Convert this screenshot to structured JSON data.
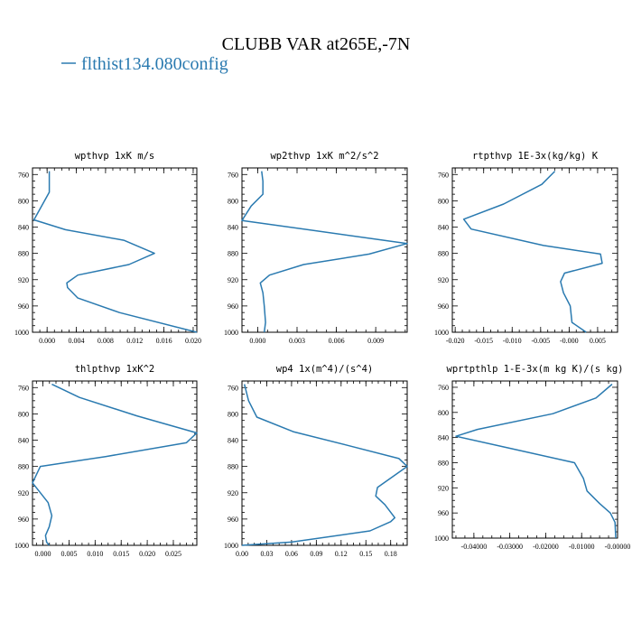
{
  "figure": {
    "title": "CLUBB VAR at265E,-7N",
    "legend_label": "flthist134.080config",
    "colors": {
      "series": "#2a7ab0",
      "frame": "#000000"
    }
  },
  "chart_data": [
    {
      "type": "line",
      "title": "wpthvp   1xK m/s",
      "xlim": [
        -0.002,
        0.0205
      ],
      "ylim": [
        1000,
        750
      ],
      "xticks": [
        0.0,
        0.004,
        0.008,
        0.012,
        0.016,
        0.02
      ],
      "xtick_labels": [
        "0.000",
        "0.004",
        "0.008",
        "0.012",
        "0.016",
        "0.020"
      ],
      "yticks": [
        760,
        800,
        840,
        880,
        920,
        960,
        1000
      ],
      "series": [
        {
          "x": [
            0.0003,
            0.0003,
            0.0003,
            -0.0018,
            0.0025,
            0.0105,
            0.0147,
            0.0112,
            0.0042,
            0.0027,
            0.0028,
            0.0042,
            0.0099,
            0.0205
          ],
          "y": [
            755,
            770,
            787,
            829,
            844,
            860,
            880,
            897,
            913,
            925,
            932,
            948,
            970,
            1000
          ]
        }
      ]
    },
    {
      "type": "line",
      "title": "wp2thvp   1xK m^2/s^2",
      "xlim": [
        -0.0012,
        0.0114
      ],
      "ylim": [
        1000,
        750
      ],
      "xticks": [
        0.0,
        0.003,
        0.006,
        0.009
      ],
      "xtick_labels": [
        "0.000",
        "0.003",
        "0.006",
        "0.009"
      ],
      "yticks": [
        760,
        800,
        840,
        880,
        920,
        960,
        1000
      ],
      "series": [
        {
          "x": [
            0.0003,
            0.0004,
            0.0004,
            -0.0005,
            -0.0012,
            0.0114,
            0.0085,
            0.0035,
            0.0009,
            0.0002,
            0.0004,
            0.0005,
            0.0006,
            0.0005
          ],
          "y": [
            755,
            770,
            790,
            808,
            830,
            865,
            881,
            897,
            913,
            925,
            940,
            960,
            985,
            1000
          ]
        }
      ]
    },
    {
      "type": "line",
      "title": "rtpthvp   1E-3x(kg/kg) K",
      "xlim": [
        -0.0205,
        0.0085
      ],
      "ylim": [
        1000,
        750
      ],
      "xticks": [
        -0.02,
        -0.015,
        -0.01,
        -0.005,
        0.0,
        0.005
      ],
      "xtick_labels": [
        "-0.020",
        "-0.015",
        "-0.010",
        "-0.005",
        "-0.000",
        "0.005"
      ],
      "yticks": [
        760,
        800,
        840,
        880,
        920,
        960,
        1000
      ],
      "series": [
        {
          "x": [
            -0.0025,
            -0.0048,
            -0.0115,
            -0.0185,
            -0.0172,
            -0.0045,
            0.0055,
            0.0058,
            -0.0008,
            -0.0015,
            -0.001,
            0.0002,
            0.0005,
            0.003
          ],
          "y": [
            755,
            775,
            805,
            828,
            843,
            868,
            881,
            895,
            910,
            923,
            940,
            960,
            985,
            1000
          ]
        }
      ]
    },
    {
      "type": "line",
      "title": "thlpthvp   1xK^2",
      "xlim": [
        -0.002,
        0.0295
      ],
      "ylim": [
        1000,
        750
      ],
      "xticks": [
        0.0,
        0.005,
        0.01,
        0.015,
        0.02,
        0.025
      ],
      "xtick_labels": [
        "0.000",
        "0.005",
        "0.010",
        "0.015",
        "0.020",
        "0.025"
      ],
      "yticks": [
        760,
        800,
        840,
        880,
        920,
        960,
        1000
      ],
      "series": [
        {
          "x": [
            0.0017,
            0.007,
            0.018,
            0.0295,
            0.0275,
            0.012,
            -0.0005,
            -0.002,
            0.001,
            0.0017,
            0.0012,
            0.0005,
            0.0007,
            0.0012
          ],
          "y": [
            755,
            775,
            803,
            829,
            844,
            865,
            880,
            905,
            935,
            955,
            972,
            985,
            995,
            1000
          ]
        }
      ]
    },
    {
      "type": "line",
      "title": "wp4   1x(m^4)/(s^4)",
      "xlim": [
        0.0,
        0.2
      ],
      "ylim": [
        1000,
        750
      ],
      "xticks": [
        0.0,
        0.03,
        0.06,
        0.09,
        0.12,
        0.15,
        0.18
      ],
      "xtick_labels": [
        "0.00",
        "0.03",
        "0.06",
        "0.09",
        "0.12",
        "0.15",
        "0.18"
      ],
      "yticks": [
        760,
        800,
        840,
        880,
        920,
        960,
        1000
      ],
      "series": [
        {
          "x": [
            0.003,
            0.008,
            0.018,
            0.062,
            0.128,
            0.19,
            0.2,
            0.164,
            0.162,
            0.173,
            0.185,
            0.18,
            0.155,
            0.06,
            0.0
          ],
          "y": [
            755,
            780,
            805,
            827,
            848,
            868,
            880,
            912,
            925,
            938,
            958,
            964,
            978,
            995,
            1000
          ]
        }
      ]
    },
    {
      "type": "line",
      "title": "wprtpthlp   1-E-3x(m kg K)/(s kg)",
      "xlim": [
        -0.046,
        0.0
      ],
      "ylim": [
        1000,
        750
      ],
      "xticks": [
        -0.04,
        -0.03,
        -0.02,
        -0.01,
        0.0
      ],
      "xtick_labels": [
        "-0.04000",
        "-0.03000",
        "-0.02000",
        "-0.01000",
        "-0.00000"
      ],
      "yticks": [
        760,
        800,
        840,
        880,
        920,
        960,
        1000
      ],
      "series": [
        {
          "x": [
            -0.0015,
            -0.006,
            -0.018,
            -0.039,
            -0.045,
            -0.03,
            -0.012,
            -0.0095,
            -0.0085,
            -0.005,
            -0.002,
            -0.0007,
            -0.0005
          ],
          "y": [
            755,
            777,
            802,
            827,
            838,
            857,
            880,
            905,
            925,
            945,
            960,
            975,
            1000
          ]
        }
      ]
    }
  ]
}
